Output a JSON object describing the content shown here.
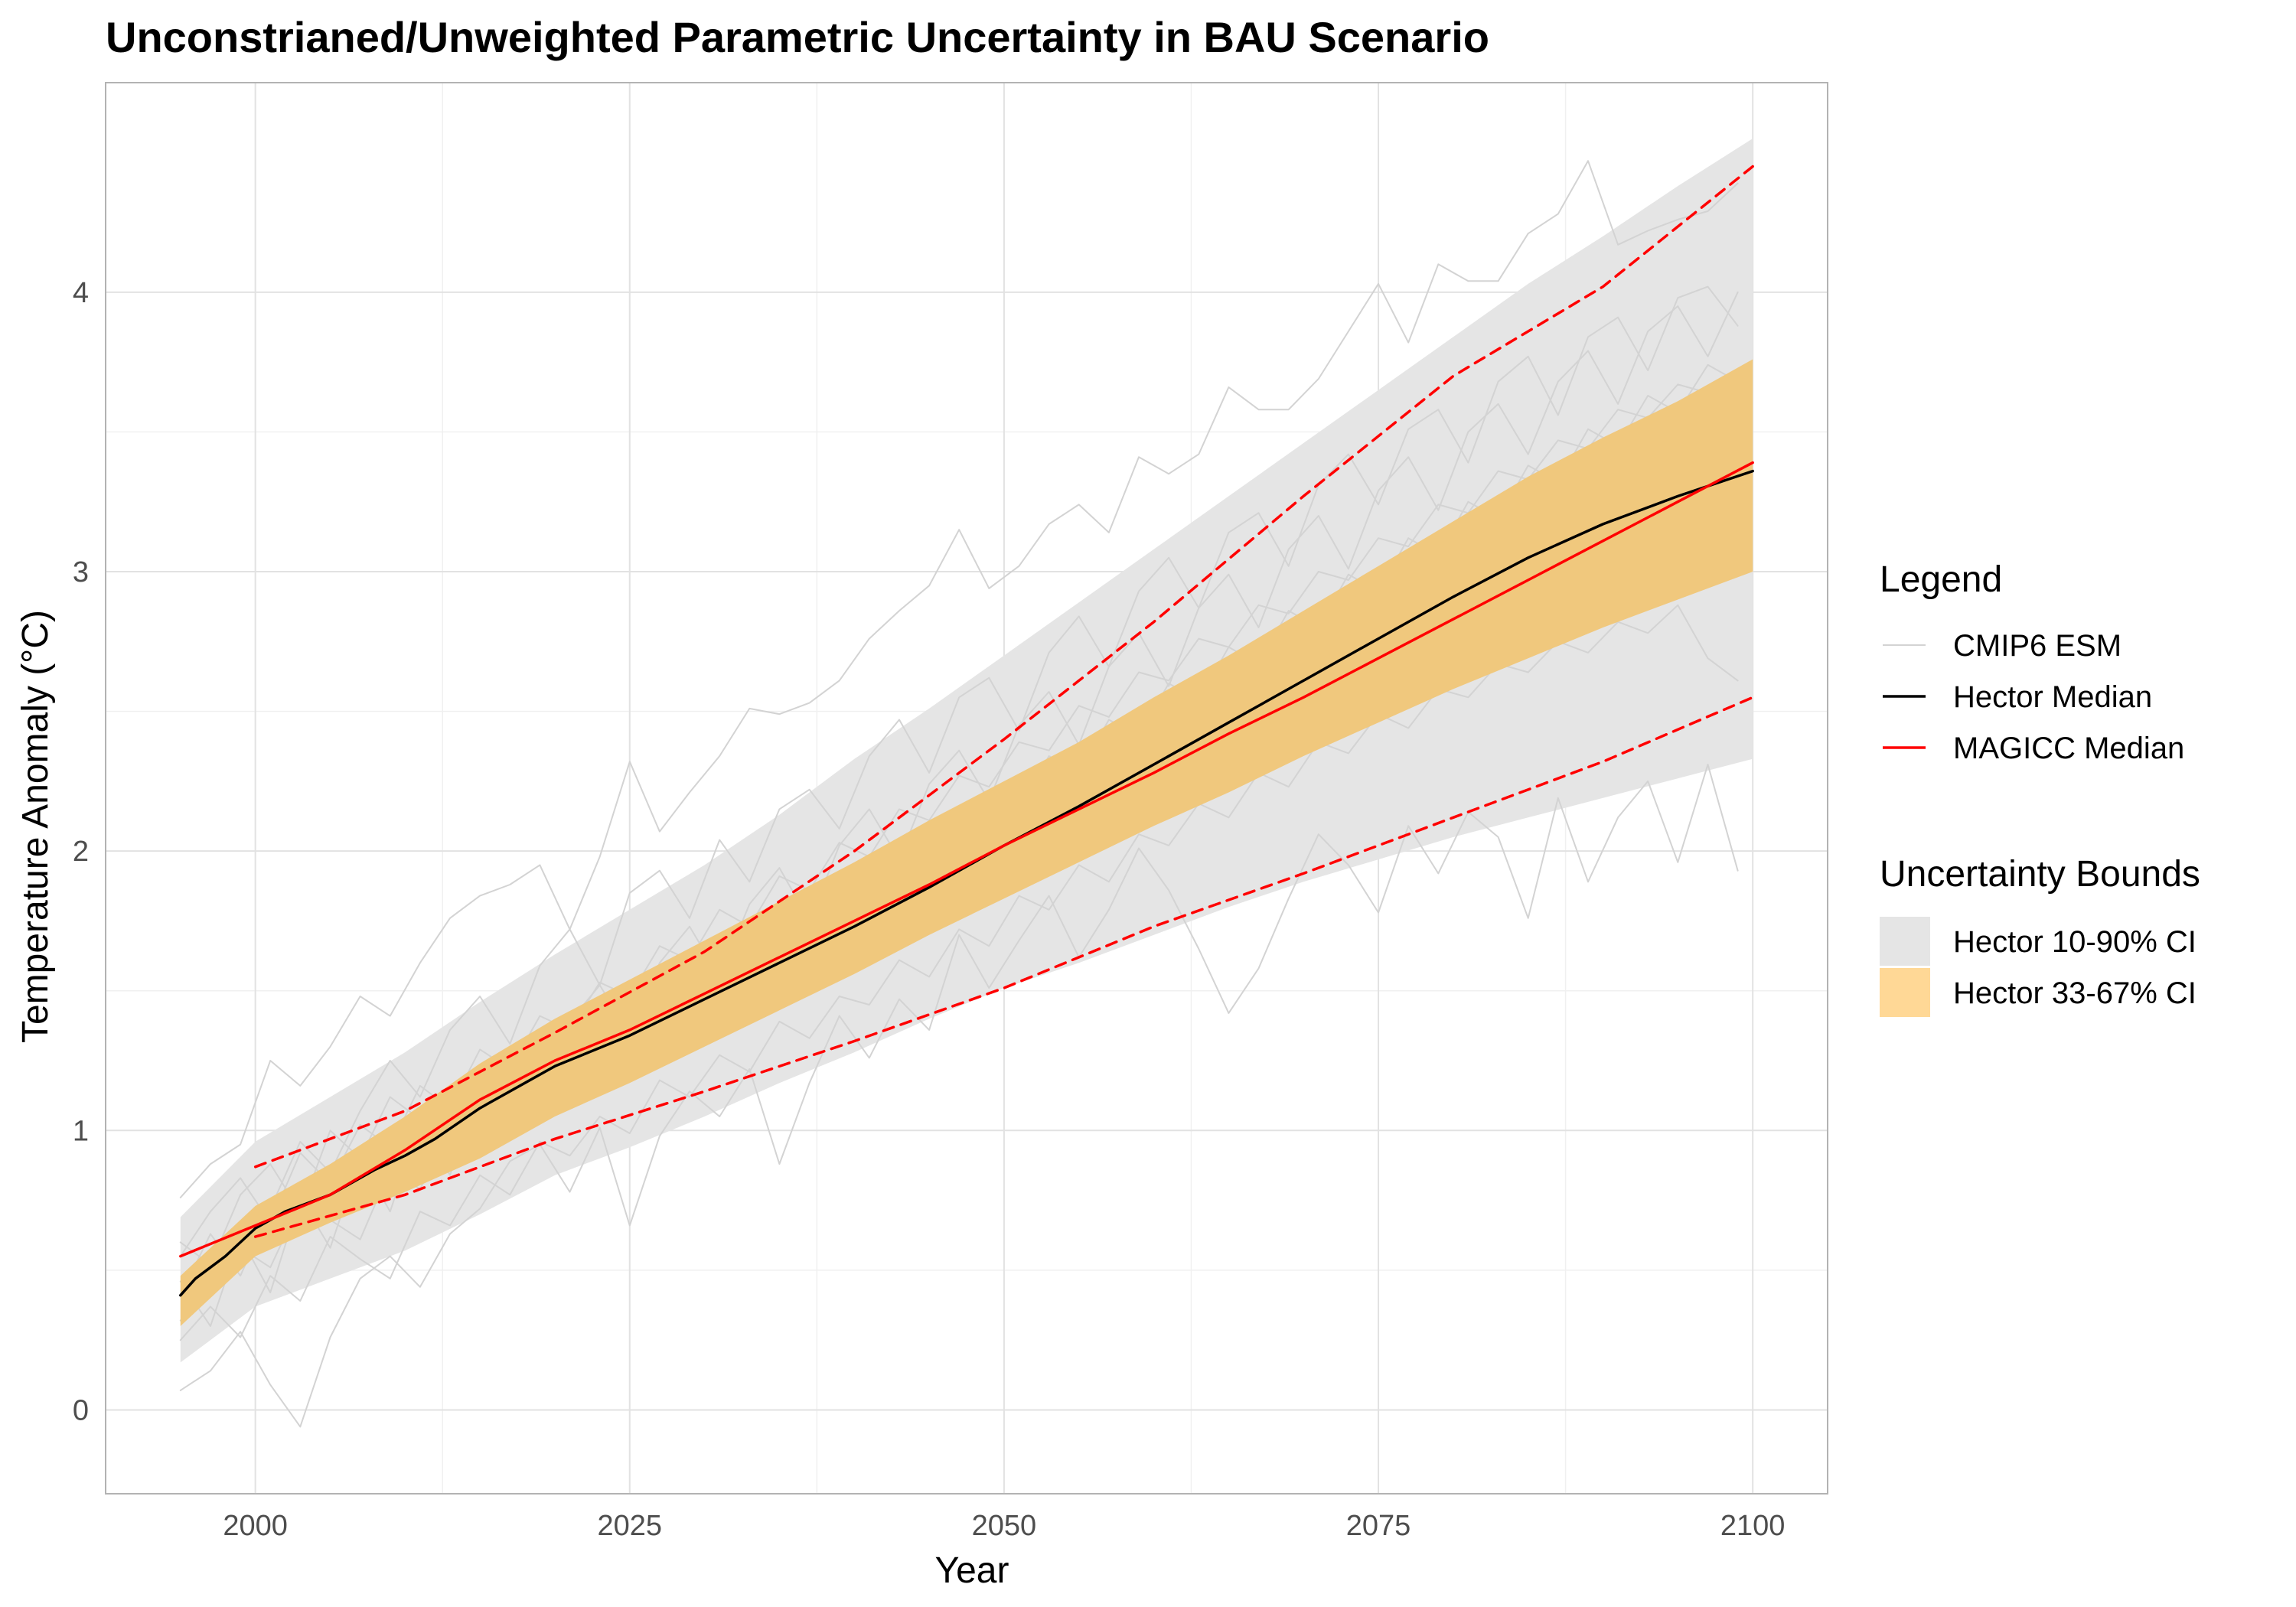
{
  "chart_data": {
    "type": "line",
    "title": "Unconstrianed/Unweighted Parametric Uncertainty in BAU Scenario",
    "xlabel": "Year",
    "ylabel": "Temperature Anomaly (°C)",
    "xlim": [
      1990,
      2105
    ],
    "ylim": [
      -0.3,
      4.75
    ],
    "x_ticks": [
      2000,
      2025,
      2050,
      2075,
      2100
    ],
    "y_ticks": [
      0,
      1,
      2,
      3,
      4
    ],
    "grid": true,
    "legend_position": "right",
    "colors": {
      "cmip6": "#d3d3d3",
      "hector_median": "#000000",
      "magicc_median": "#ff0000",
      "ci_10_90": "#e5e5e5",
      "ci_33_67": "#f0c87d",
      "ci_33_67_legend": "#ffd896"
    },
    "legend": {
      "title": "Legend",
      "items": [
        "CMIP6 ESM",
        "Hector Median",
        "MAGICC Median"
      ]
    },
    "bounds_legend": {
      "title": "Uncertainty Bounds",
      "items": [
        "Hector 10-90% CI",
        "Hector 33-67% CI"
      ]
    },
    "series": [
      {
        "name": "Hector Median",
        "style": "solid",
        "x": [
          1995,
          1996,
          1997,
          1998,
          2000,
          2002,
          2005,
          2008,
          2010,
          2012,
          2015,
          2020,
          2025,
          2030,
          2035,
          2040,
          2045,
          2050,
          2055,
          2060,
          2065,
          2070,
          2075,
          2080,
          2085,
          2090,
          2095,
          2100
        ],
        "y": [
          0.41,
          0.47,
          0.51,
          0.55,
          0.65,
          0.71,
          0.77,
          0.86,
          0.91,
          0.97,
          1.08,
          1.23,
          1.34,
          1.47,
          1.6,
          1.73,
          1.87,
          2.02,
          2.16,
          2.31,
          2.46,
          2.61,
          2.76,
          2.91,
          3.05,
          3.17,
          3.27,
          3.36
        ]
      },
      {
        "name": "MAGICC Median",
        "style": "solid",
        "x": [
          1995,
          2000,
          2005,
          2010,
          2015,
          2020,
          2025,
          2030,
          2035,
          2040,
          2045,
          2050,
          2055,
          2060,
          2065,
          2070,
          2075,
          2080,
          2085,
          2090,
          2095,
          2100
        ],
        "y": [
          0.55,
          0.66,
          0.77,
          0.93,
          1.11,
          1.25,
          1.36,
          1.49,
          1.62,
          1.75,
          1.88,
          2.02,
          2.15,
          2.28,
          2.42,
          2.55,
          2.69,
          2.83,
          2.97,
          3.11,
          3.25,
          3.39
        ]
      },
      {
        "style": "dashed",
        "x": [
          2000,
          2010,
          2020,
          2030,
          2040,
          2050,
          2060,
          2070,
          2080,
          2090,
          2100
        ],
        "y": [
          0.87,
          1.07,
          1.35,
          1.64,
          2.0,
          2.4,
          2.82,
          3.27,
          3.7,
          4.02,
          4.45
        ]
      },
      {
        "style": "dashed",
        "x": [
          2000,
          2010,
          2020,
          2030,
          2040,
          2050,
          2060,
          2070,
          2080,
          2090,
          2100
        ],
        "y": [
          0.62,
          0.77,
          0.97,
          1.14,
          1.32,
          1.51,
          1.73,
          1.92,
          2.12,
          2.32,
          2.55
        ]
      }
    ],
    "ci_10_90": {
      "x": [
        1995,
        2000,
        2005,
        2010,
        2015,
        2020,
        2025,
        2030,
        2035,
        2040,
        2045,
        2050,
        2055,
        2060,
        2065,
        2070,
        2075,
        2080,
        2085,
        2090,
        2095,
        2100
      ],
      "lower": [
        0.17,
        0.37,
        0.47,
        0.57,
        0.7,
        0.84,
        0.94,
        1.05,
        1.17,
        1.28,
        1.4,
        1.51,
        1.6,
        1.7,
        1.8,
        1.89,
        1.97,
        2.05,
        2.12,
        2.19,
        2.26,
        2.33
      ],
      "upper": [
        0.69,
        0.96,
        1.12,
        1.28,
        1.46,
        1.63,
        1.79,
        1.95,
        2.13,
        2.33,
        2.51,
        2.7,
        2.89,
        3.08,
        3.27,
        3.46,
        3.65,
        3.84,
        4.03,
        4.2,
        4.38,
        4.55
      ]
    },
    "ci_33_67": {
      "x": [
        1995,
        2000,
        2005,
        2010,
        2015,
        2020,
        2025,
        2030,
        2035,
        2040,
        2045,
        2050,
        2055,
        2060,
        2065,
        2070,
        2075,
        2080,
        2085,
        2090,
        2095,
        2100
      ],
      "lower": [
        0.3,
        0.55,
        0.67,
        0.78,
        0.9,
        1.05,
        1.17,
        1.3,
        1.43,
        1.56,
        1.7,
        1.83,
        1.96,
        2.09,
        2.21,
        2.34,
        2.46,
        2.58,
        2.69,
        2.8,
        2.9,
        3.0
      ],
      "upper": [
        0.48,
        0.73,
        0.88,
        1.05,
        1.24,
        1.4,
        1.54,
        1.68,
        1.82,
        1.96,
        2.11,
        2.25,
        2.39,
        2.55,
        2.7,
        2.86,
        3.02,
        3.18,
        3.34,
        3.48,
        3.61,
        3.76
      ]
    },
    "cmip6_models": [
      {
        "x": [
          1995,
          1997,
          1999,
          2001,
          2003,
          2005,
          2007,
          2009,
          2011,
          2013,
          2015,
          2017,
          2019,
          2021,
          2023,
          2025,
          2027,
          2029,
          2031,
          2033,
          2035,
          2037,
          2039,
          2041,
          2043,
          2045,
          2047,
          2049,
          2051,
          2053,
          2055,
          2057,
          2059,
          2061,
          2063,
          2065,
          2067,
          2069,
          2071,
          2073,
          2075,
          2077,
          2079,
          2081,
          2083,
          2085,
          2087,
          2089,
          2091,
          2093,
          2095,
          2097,
          2099
        ],
        "y": [
          0.76,
          0.88,
          0.95,
          1.25,
          1.16,
          1.3,
          1.48,
          1.41,
          1.6,
          1.76,
          1.84,
          1.88,
          1.95,
          1.72,
          1.98,
          2.32,
          2.07,
          2.21,
          2.34,
          2.51,
          2.49,
          2.53,
          2.61,
          2.76,
          2.86,
          2.95,
          3.15,
          2.94,
          3.02,
          3.17,
          3.24,
          3.14,
          3.41,
          3.35,
          3.42,
          3.66,
          3.58,
          3.58,
          3.69,
          3.86,
          4.03,
          3.82,
          4.1,
          4.04,
          4.04,
          4.21,
          4.28,
          4.47,
          4.17,
          4.22,
          4.26,
          4.29,
          4.39
        ]
      },
      {
        "x": [
          1995,
          1997,
          1999,
          2001,
          2003,
          2005,
          2007,
          2009,
          2011,
          2013,
          2015,
          2017,
          2019,
          2021,
          2023,
          2025,
          2027,
          2029,
          2031,
          2033,
          2035,
          2037,
          2039,
          2041,
          2043,
          2045,
          2047,
          2049,
          2051,
          2053,
          2055,
          2057,
          2059,
          2061,
          2063,
          2065,
          2067,
          2069,
          2071,
          2073,
          2075,
          2077,
          2079,
          2081,
          2083,
          2085,
          2087,
          2089,
          2091,
          2093,
          2095,
          2097,
          2099
        ],
        "y": [
          0.07,
          0.14,
          0.28,
          0.09,
          -0.06,
          0.26,
          0.47,
          0.55,
          0.44,
          0.63,
          0.72,
          0.89,
          0.95,
          0.78,
          1.01,
          0.66,
          0.98,
          1.14,
          1.05,
          1.22,
          0.88,
          1.17,
          1.41,
          1.26,
          1.47,
          1.36,
          1.7,
          1.51,
          1.68,
          1.84,
          1.62,
          1.79,
          2.01,
          1.86,
          1.65,
          1.42,
          1.58,
          1.83,
          2.06,
          1.95,
          1.78,
          2.09,
          1.92,
          2.14,
          2.05,
          1.76,
          2.19,
          1.89,
          2.12,
          2.25,
          1.96,
          2.31,
          1.93
        ]
      },
      {
        "x": [
          1995,
          1997,
          1999,
          2001,
          2003,
          2005,
          2007,
          2009,
          2011,
          2013,
          2015,
          2017,
          2019,
          2021,
          2023,
          2025,
          2027,
          2029,
          2031,
          2033,
          2035,
          2037,
          2039,
          2041,
          2043,
          2045,
          2047,
          2049,
          2051,
          2053,
          2055,
          2057,
          2059,
          2061,
          2063,
          2065,
          2067,
          2069,
          2071,
          2073,
          2075,
          2077,
          2079,
          2081,
          2083,
          2085,
          2087,
          2089,
          2091,
          2093,
          2095,
          2097,
          2099
        ],
        "y": [
          0.41,
          0.63,
          0.48,
          0.72,
          0.96,
          0.85,
          1.07,
          1.25,
          1.12,
          1.36,
          1.48,
          1.31,
          1.59,
          1.72,
          1.52,
          1.85,
          1.93,
          1.76,
          2.04,
          1.89,
          2.15,
          2.22,
          2.08,
          2.34,
          2.47,
          2.28,
          2.55,
          2.62,
          2.43,
          2.71,
          2.84,
          2.66,
          2.93,
          3.05,
          2.87,
          3.14,
          3.21,
          3.02,
          3.31,
          3.42,
          3.24,
          3.51,
          3.58,
          3.39,
          3.68,
          3.77,
          3.56,
          3.84,
          3.91,
          3.72,
          3.98,
          4.02,
          3.88
        ]
      },
      {
        "x": [
          1995,
          1997,
          1999,
          2001,
          2003,
          2005,
          2007,
          2009,
          2011,
          2013,
          2015,
          2017,
          2019,
          2021,
          2023,
          2025,
          2027,
          2029,
          2031,
          2033,
          2035,
          2037,
          2039,
          2041,
          2043,
          2045,
          2047,
          2049,
          2051,
          2053,
          2055,
          2057,
          2059,
          2061,
          2063,
          2065,
          2067,
          2069,
          2071,
          2073,
          2075,
          2077,
          2079,
          2081,
          2083,
          2085,
          2087,
          2089,
          2091,
          2093,
          2095,
          2097,
          2099
        ],
        "y": [
          0.25,
          0.37,
          0.26,
          0.48,
          0.39,
          0.62,
          0.54,
          0.47,
          0.71,
          0.66,
          0.84,
          0.77,
          0.96,
          0.91,
          1.05,
          0.99,
          1.18,
          1.12,
          1.27,
          1.21,
          1.39,
          1.33,
          1.48,
          1.45,
          1.61,
          1.55,
          1.72,
          1.66,
          1.84,
          1.79,
          1.95,
          1.89,
          2.06,
          2.02,
          2.17,
          2.12,
          2.28,
          2.23,
          2.39,
          2.35,
          2.49,
          2.44,
          2.58,
          2.55,
          2.67,
          2.64,
          2.75,
          2.71,
          2.82,
          2.78,
          2.88,
          2.69,
          2.61
        ]
      },
      {
        "x": [
          1995,
          1997,
          1999,
          2001,
          2003,
          2005,
          2007,
          2009,
          2011,
          2013,
          2015,
          2017,
          2019,
          2021,
          2023,
          2025,
          2027,
          2029,
          2031,
          2033,
          2035,
          2037,
          2039,
          2041,
          2043,
          2045,
          2047,
          2049,
          2051,
          2053,
          2055,
          2057,
          2059,
          2061,
          2063,
          2065,
          2067,
          2069,
          2071,
          2073,
          2075,
          2077,
          2079,
          2081,
          2083,
          2085,
          2087,
          2089,
          2091,
          2093,
          2095,
          2097,
          2099
        ],
        "y": [
          0.55,
          0.71,
          0.83,
          0.67,
          0.92,
          0.81,
          1.02,
          0.94,
          1.16,
          1.08,
          1.29,
          1.22,
          1.41,
          1.36,
          1.53,
          1.48,
          1.66,
          1.61,
          1.79,
          1.73,
          1.91,
          1.86,
          2.03,
          1.98,
          2.15,
          2.11,
          2.27,
          2.23,
          2.39,
          2.36,
          2.52,
          2.48,
          2.64,
          2.61,
          2.76,
          2.73,
          2.88,
          2.85,
          3.0,
          2.97,
          3.12,
          3.09,
          3.24,
          3.21,
          3.36,
          3.33,
          3.47,
          3.44,
          3.58,
          3.55,
          3.67,
          3.64,
          3.71
        ]
      },
      {
        "x": [
          1995,
          1997,
          1999,
          2001,
          2003,
          2005,
          2007,
          2009,
          2011,
          2013,
          2015,
          2017,
          2019,
          2021,
          2023,
          2025,
          2027,
          2029,
          2031,
          2033,
          2035,
          2037,
          2039,
          2041,
          2043,
          2045,
          2047,
          2049,
          2051,
          2053,
          2055,
          2057,
          2059,
          2061,
          2063,
          2065,
          2067,
          2069,
          2071,
          2073,
          2075,
          2077,
          2079,
          2081,
          2083,
          2085,
          2087,
          2089,
          2091,
          2093,
          2095,
          2097,
          2099
        ],
        "y": [
          0.32,
          0.45,
          0.58,
          0.51,
          0.74,
          0.68,
          0.61,
          0.86,
          0.79,
          1.01,
          0.95,
          1.15,
          1.07,
          1.29,
          1.21,
          1.42,
          1.35,
          1.56,
          1.49,
          1.69,
          1.63,
          1.82,
          1.76,
          1.95,
          1.89,
          2.08,
          2.02,
          2.21,
          2.15,
          2.34,
          2.28,
          2.47,
          2.41,
          2.6,
          2.54,
          2.73,
          2.67,
          2.86,
          2.8,
          2.99,
          2.93,
          3.12,
          3.06,
          3.25,
          3.19,
          3.38,
          3.32,
          3.51,
          3.45,
          3.63,
          3.57,
          3.74,
          3.68
        ]
      },
      {
        "x": [
          1995,
          1997,
          1999,
          2001,
          2003,
          2005,
          2007,
          2009,
          2011,
          2013,
          2015,
          2017,
          2019,
          2021,
          2023,
          2025,
          2027,
          2029,
          2031,
          2033,
          2035,
          2037,
          2039,
          2041,
          2043,
          2045,
          2047,
          2049,
          2051,
          2053,
          2055,
          2057,
          2059,
          2061,
          2063,
          2065,
          2067,
          2069,
          2071,
          2073,
          2075,
          2077,
          2079,
          2081,
          2083,
          2085,
          2087,
          2089,
          2091,
          2093,
          2095,
          2097,
          2099
        ],
        "y": [
          0.6,
          0.52,
          0.77,
          0.88,
          0.71,
          1.0,
          0.9,
          1.12,
          1.04,
          0.94,
          1.18,
          1.29,
          1.13,
          1.39,
          1.52,
          1.34,
          1.6,
          1.73,
          1.55,
          1.81,
          1.94,
          1.75,
          2.02,
          2.15,
          1.97,
          2.24,
          2.36,
          2.18,
          2.45,
          2.57,
          2.38,
          2.66,
          2.78,
          2.59,
          2.87,
          2.99,
          2.8,
          3.08,
          3.2,
          3.01,
          3.29,
          3.41,
          3.22,
          3.5,
          3.6,
          3.42,
          3.68,
          3.79,
          3.6,
          3.86,
          3.95,
          3.77,
          4.0
        ]
      },
      {
        "x": [
          1995,
          1997,
          1999,
          2001,
          2003,
          2005,
          2007,
          2009,
          2011,
          2013,
          2015,
          2017,
          2019,
          2021,
          2023,
          2025,
          2027,
          2029,
          2031,
          2033,
          2035,
          2037,
          2039,
          2041,
          2043,
          2045,
          2047,
          2049,
          2051,
          2053,
          2055,
          2057,
          2059,
          2061,
          2063,
          2065,
          2067,
          2069,
          2071,
          2073,
          2075,
          2077,
          2079,
          2081,
          2083,
          2085,
          2087,
          2089,
          2091,
          2093,
          2095,
          2097,
          2099
        ],
        "y": [
          0.46,
          0.3,
          0.62,
          0.42,
          0.76,
          0.58,
          0.9,
          0.71,
          1.03,
          0.84,
          1.16,
          0.97,
          1.28,
          1.1,
          1.4,
          1.22,
          1.52,
          1.35,
          1.64,
          1.47,
          1.76,
          1.59,
          1.88,
          1.71,
          2.0,
          1.83,
          2.12,
          1.95,
          2.24,
          2.07,
          2.36,
          2.19,
          2.48,
          2.31,
          2.59,
          2.42,
          2.7,
          2.53,
          2.81,
          2.64,
          2.92,
          2.75,
          3.02,
          2.85,
          3.12,
          2.95,
          3.22,
          3.05,
          3.31,
          3.14,
          3.4,
          3.23,
          3.48
        ]
      }
    ]
  }
}
